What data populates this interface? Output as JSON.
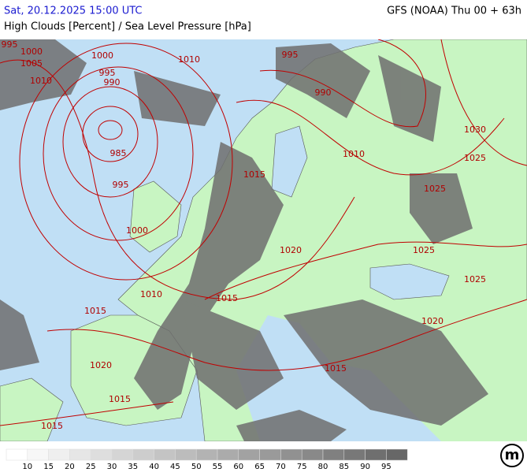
{
  "header": {
    "left": "Sat, 20.12.2025 15:00 UTC",
    "right": "GFS (NOAA) Thu 00 + 63h",
    "subtitle": "High Clouds [Percent] / Sea Level Pressure [hPa]"
  },
  "isobar_labels": [
    "995",
    "1000",
    "1005",
    "1010",
    "1000",
    "995",
    "990",
    "1010",
    "985",
    "995",
    "1000",
    "995",
    "990",
    "1010",
    "1015",
    "1030",
    "1025",
    "1025",
    "1020",
    "1025",
    "1025",
    "1010",
    "1015",
    "1015",
    "1020",
    "1020",
    "1015",
    "1015",
    "1015"
  ],
  "colorbar": {
    "labels": [
      "10",
      "15",
      "20",
      "25",
      "30",
      "35",
      "40",
      "45",
      "50",
      "55",
      "60",
      "65",
      "70",
      "75",
      "80",
      "85",
      "90",
      "95"
    ],
    "colors": [
      "#ffffff",
      "#f7f7f7",
      "#efefef",
      "#e6e6e6",
      "#dedede",
      "#d5d5d5",
      "#cdcdcd",
      "#c4c4c4",
      "#bcbcbc",
      "#b3b3b3",
      "#ababab",
      "#a2a2a2",
      "#9a9a9a",
      "#919191",
      "#898989",
      "#808080",
      "#787878",
      "#6f6f6f",
      "#676767"
    ]
  },
  "logo": "m"
}
